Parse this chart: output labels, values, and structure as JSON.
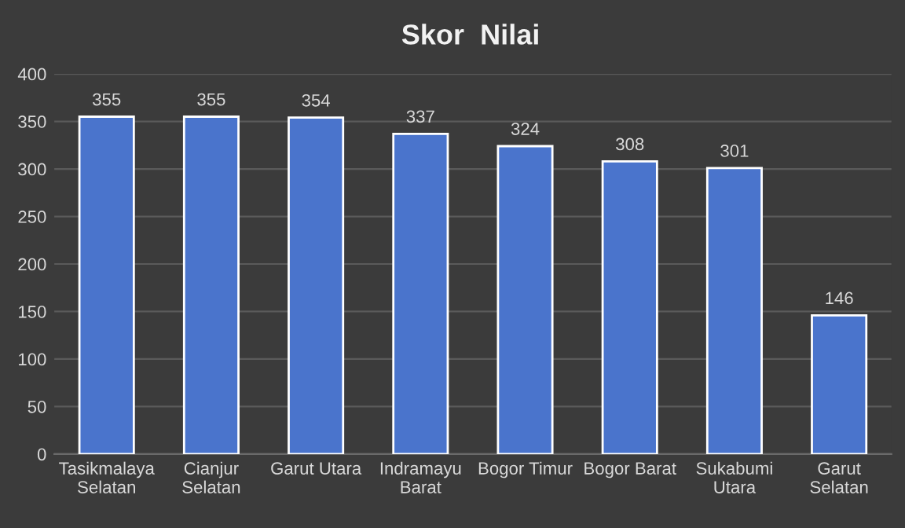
{
  "chart_data": {
    "type": "bar",
    "title": "Skor  Nilai",
    "categories": [
      "Tasikmalaya\nSelatan",
      "Cianjur\nSelatan",
      "Garut Utara",
      "Indramayu\nBarat",
      "Bogor Timur",
      "Bogor Barat",
      "Sukabumi\nUtara",
      "Garut\nSelatan"
    ],
    "values": [
      355,
      355,
      354,
      337,
      324,
      308,
      301,
      146
    ],
    "color": "#4a74cc",
    "ylim": [
      0,
      400
    ],
    "yticks": [
      0,
      50,
      100,
      150,
      200,
      250,
      300,
      350,
      400
    ],
    "grid": "y",
    "data_labels": true
  }
}
